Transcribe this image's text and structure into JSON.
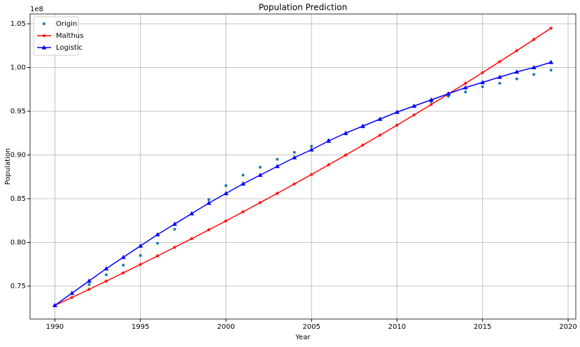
{
  "chart_data": {
    "type": "line",
    "title": "Population Prediction",
    "xlabel": "Year",
    "ylabel": "Population",
    "y_offset_label": "1e8",
    "x": [
      1990,
      1991,
      1992,
      1993,
      1994,
      1995,
      1996,
      1997,
      1998,
      1999,
      2000,
      2001,
      2002,
      2003,
      2004,
      2005,
      2006,
      2007,
      2008,
      2009,
      2010,
      2011,
      2012,
      2013,
      2014,
      2015,
      2016,
      2017,
      2018,
      2019
    ],
    "series": [
      {
        "name": "Origin",
        "color": "#1f77b4",
        "marker": "o",
        "linestyle": "none",
        "values": [
          0.728,
          0.742,
          0.752,
          0.763,
          0.774,
          0.785,
          0.799,
          0.815,
          0.833,
          0.849,
          0.865,
          0.877,
          0.886,
          0.895,
          0.903,
          0.91,
          0.917,
          0.924,
          0.932,
          0.941,
          0.949,
          0.956,
          0.961,
          0.967,
          0.972,
          0.978,
          0.982,
          0.987,
          0.992,
          0.997
        ]
      },
      {
        "name": "Malthus",
        "color": "#ff0000",
        "marker": "*",
        "linestyle": "-",
        "values": [
          0.728,
          0.7371,
          0.7463,
          0.7557,
          0.7652,
          0.7748,
          0.7845,
          0.7944,
          0.8043,
          0.8144,
          0.8246,
          0.835,
          0.8455,
          0.8561,
          0.8668,
          0.8777,
          0.8887,
          0.8999,
          0.9112,
          0.9226,
          0.9341,
          0.9458,
          0.9577,
          0.9697,
          0.9819,
          0.9942,
          1.0067,
          1.0193,
          1.0321,
          1.045
        ]
      },
      {
        "name": "Logistic",
        "color": "#0000ff",
        "marker": "^",
        "linestyle": "-",
        "values": [
          0.728,
          0.742,
          0.756,
          0.77,
          0.783,
          0.796,
          0.809,
          0.821,
          0.833,
          0.845,
          0.856,
          0.867,
          0.877,
          0.887,
          0.897,
          0.906,
          0.916,
          0.925,
          0.933,
          0.941,
          0.949,
          0.956,
          0.963,
          0.97,
          0.977,
          0.983,
          0.989,
          0.995,
          1.0,
          1.006
        ]
      }
    ],
    "xlim": [
      1988.55,
      2020.45
    ],
    "xticks": [
      1990,
      1995,
      2000,
      2005,
      2010,
      2015,
      2020
    ],
    "ylim": [
      0.7124,
      1.0612
    ],
    "yticks": [
      0.75,
      {
        "value": 0.8,
        "label": "0.80"
      },
      0.85,
      {
        "value": 0.9,
        "label": "0.90"
      },
      0.95,
      {
        "value": 1.0,
        "label": "1.00"
      },
      1.05
    ],
    "grid": true,
    "legend": "upper left"
  }
}
